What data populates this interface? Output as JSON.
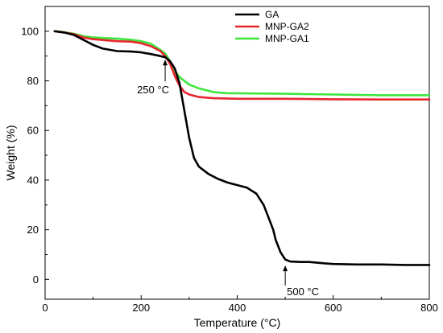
{
  "chart_data": {
    "type": "line",
    "xlabel": "Temperature (°C)",
    "ylabel": "Weight (%)",
    "xlim": [
      0,
      800
    ],
    "ylim": [
      -8,
      110
    ],
    "xticks": [
      0,
      200,
      400,
      600,
      800
    ],
    "yticks": [
      0,
      20,
      40,
      60,
      80,
      100
    ],
    "grid": false,
    "legend_position": "top-center",
    "series": [
      {
        "name": "GA",
        "color": "#000000",
        "points": [
          [
            20,
            100
          ],
          [
            40,
            99.5
          ],
          [
            60,
            98.5
          ],
          [
            80,
            96.5
          ],
          [
            100,
            94.5
          ],
          [
            120,
            93
          ],
          [
            150,
            92
          ],
          [
            180,
            91.8
          ],
          [
            200,
            91.5
          ],
          [
            220,
            90.8
          ],
          [
            240,
            90
          ],
          [
            250,
            89.5
          ],
          [
            260,
            88
          ],
          [
            270,
            85
          ],
          [
            280,
            79
          ],
          [
            290,
            68
          ],
          [
            300,
            57
          ],
          [
            310,
            49
          ],
          [
            320,
            45.5
          ],
          [
            340,
            42.5
          ],
          [
            360,
            40.5
          ],
          [
            380,
            39
          ],
          [
            400,
            38
          ],
          [
            420,
            37
          ],
          [
            440,
            34.5
          ],
          [
            455,
            30
          ],
          [
            465,
            25
          ],
          [
            475,
            20
          ],
          [
            480,
            16
          ],
          [
            490,
            11
          ],
          [
            500,
            8
          ],
          [
            510,
            7.2
          ],
          [
            530,
            7
          ],
          [
            550,
            7
          ],
          [
            580,
            6.5
          ],
          [
            600,
            6.2
          ],
          [
            650,
            6
          ],
          [
            700,
            6
          ],
          [
            750,
            5.8
          ],
          [
            800,
            5.8
          ]
        ]
      },
      {
        "name": "MNP-GA2",
        "color": "#e8262d",
        "points": [
          [
            20,
            100
          ],
          [
            40,
            99.5
          ],
          [
            60,
            98.8
          ],
          [
            80,
            97.5
          ],
          [
            100,
            96.8
          ],
          [
            150,
            96
          ],
          [
            180,
            95.8
          ],
          [
            200,
            95.2
          ],
          [
            220,
            94
          ],
          [
            240,
            92
          ],
          [
            250,
            90
          ],
          [
            260,
            87
          ],
          [
            270,
            82
          ],
          [
            280,
            78
          ],
          [
            290,
            75.5
          ],
          [
            300,
            74.5
          ],
          [
            320,
            73.5
          ],
          [
            350,
            73
          ],
          [
            400,
            72.8
          ],
          [
            500,
            72.8
          ],
          [
            600,
            72.6
          ],
          [
            700,
            72.5
          ],
          [
            800,
            72.5
          ]
        ]
      },
      {
        "name": "MNP-GA1",
        "color": "#3ce63c",
        "points": [
          [
            20,
            100
          ],
          [
            40,
            99.6
          ],
          [
            60,
            99
          ],
          [
            80,
            98
          ],
          [
            100,
            97.5
          ],
          [
            150,
            97
          ],
          [
            180,
            96.5
          ],
          [
            200,
            96
          ],
          [
            220,
            95
          ],
          [
            240,
            92.5
          ],
          [
            250,
            91
          ],
          [
            260,
            88
          ],
          [
            270,
            84
          ],
          [
            280,
            81.5
          ],
          [
            290,
            80
          ],
          [
            300,
            78.5
          ],
          [
            320,
            77
          ],
          [
            350,
            75.5
          ],
          [
            380,
            75
          ],
          [
            400,
            75
          ],
          [
            500,
            74.8
          ],
          [
            600,
            74.5
          ],
          [
            700,
            74.2
          ],
          [
            800,
            74.2
          ]
        ]
      }
    ],
    "annotations": [
      {
        "text": "250 °C",
        "x": 250,
        "y": 89.5
      },
      {
        "text": "500 °C",
        "x": 500,
        "y": 7.2
      }
    ]
  }
}
